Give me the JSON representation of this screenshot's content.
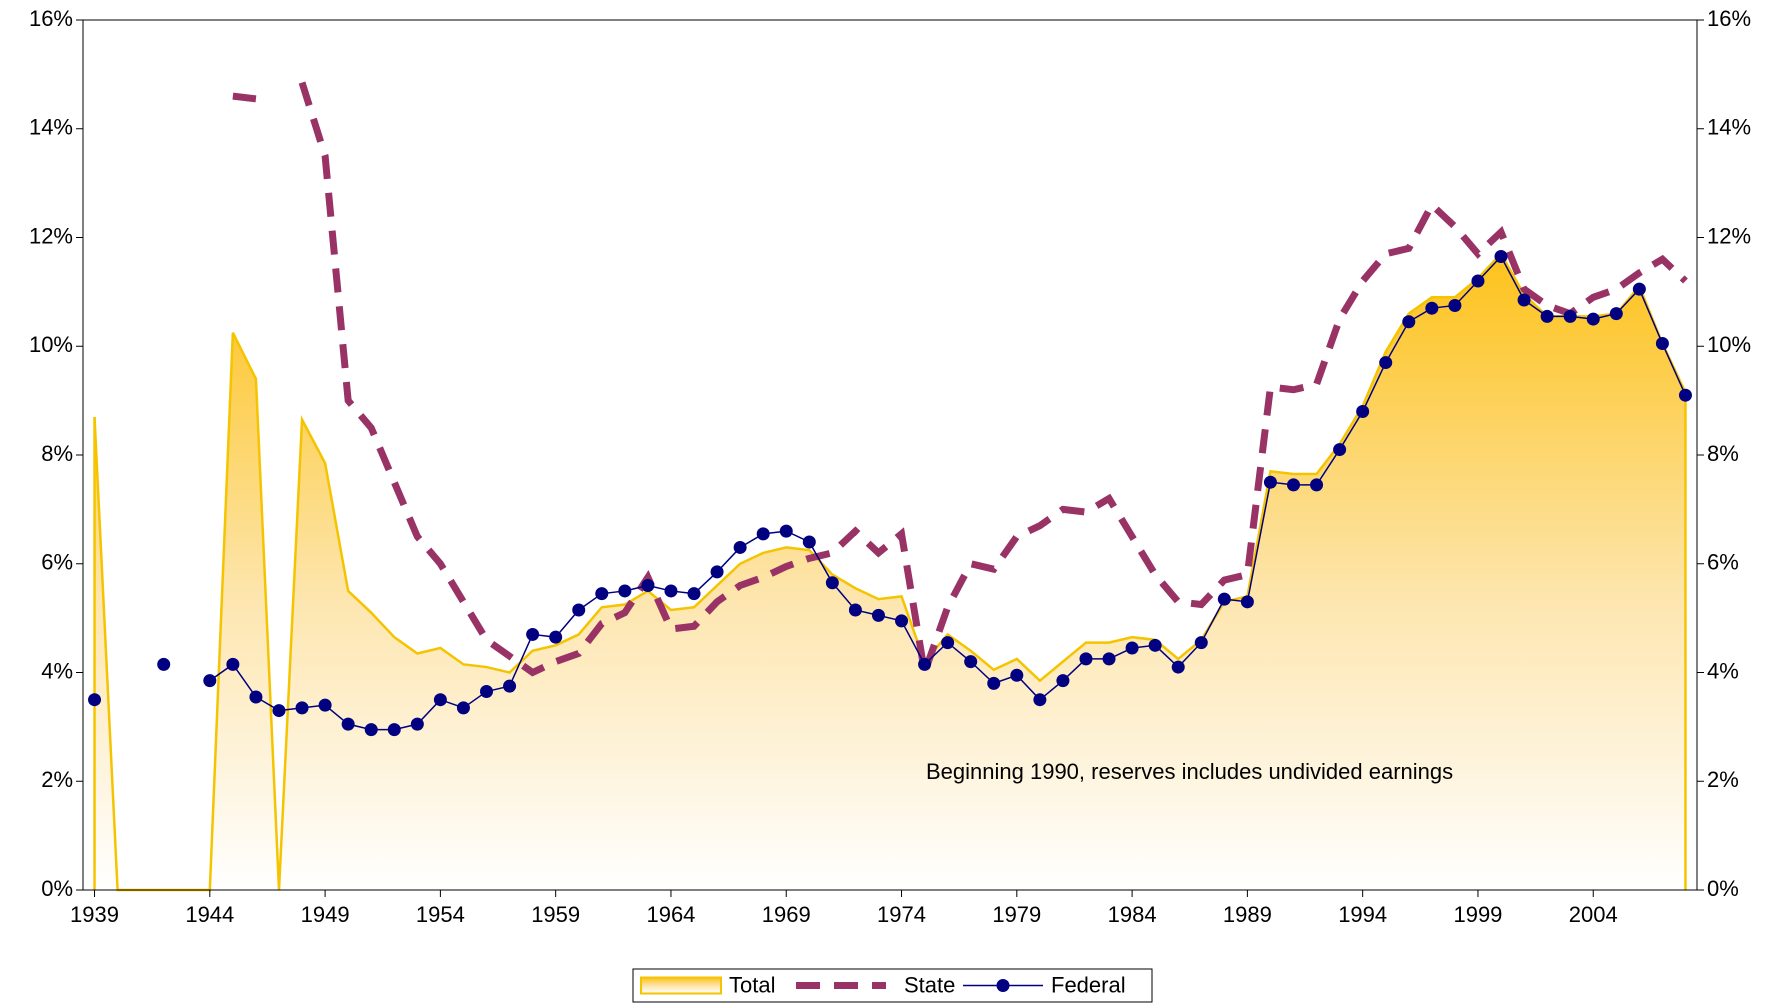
{
  "chart_data": {
    "type": "line",
    "annotation": "Beginning 1990, reserves includes undivided earnings",
    "x": [
      1939,
      1940,
      1941,
      1942,
      1943,
      1944,
      1945,
      1946,
      1947,
      1948,
      1949,
      1950,
      1951,
      1952,
      1953,
      1954,
      1955,
      1956,
      1957,
      1958,
      1959,
      1960,
      1961,
      1962,
      1963,
      1964,
      1965,
      1966,
      1967,
      1968,
      1969,
      1970,
      1971,
      1972,
      1973,
      1974,
      1975,
      1976,
      1977,
      1978,
      1979,
      1980,
      1981,
      1982,
      1983,
      1984,
      1985,
      1986,
      1987,
      1988,
      1989,
      1990,
      1991,
      1992,
      1993,
      1994,
      1995,
      1996,
      1997,
      1998,
      1999,
      2000,
      2001,
      2002,
      2003,
      2004,
      2005,
      2006,
      2007,
      2008
    ],
    "xlim": [
      1938.5,
      2008.5
    ],
    "xticks": [
      1939,
      1944,
      1949,
      1954,
      1959,
      1964,
      1969,
      1974,
      1979,
      1984,
      1989,
      1994,
      1999,
      2004
    ],
    "ylim": [
      0,
      16
    ],
    "yticks": [
      {
        "value": 0,
        "label": "0%"
      },
      {
        "value": 2,
        "label": "2%"
      },
      {
        "value": 4,
        "label": "4%"
      },
      {
        "value": 6,
        "label": "6%"
      },
      {
        "value": 8,
        "label": "8%"
      },
      {
        "value": 10,
        "label": "10%"
      },
      {
        "value": 12,
        "label": "12%"
      },
      {
        "value": 14,
        "label": "14%"
      },
      {
        "value": 16,
        "label": "16%"
      }
    ],
    "y2lim": [
      0,
      16
    ],
    "y2ticks": [
      {
        "value": 0,
        "label": "0%"
      },
      {
        "value": 2,
        "label": "2%"
      },
      {
        "value": 4,
        "label": "4%"
      },
      {
        "value": 6,
        "label": "6%"
      },
      {
        "value": 8,
        "label": "8%"
      },
      {
        "value": 10,
        "label": "10%"
      },
      {
        "value": 12,
        "label": "12%"
      },
      {
        "value": 14,
        "label": "14%"
      },
      {
        "value": 16,
        "label": "16%"
      }
    ],
    "legend": "bottom",
    "series": [
      {
        "name": "Total",
        "color": "#f5c400",
        "mark": "area",
        "values": [
          8.7,
          0,
          0,
          0,
          0,
          0,
          10.25,
          9.4,
          0,
          8.65,
          7.85,
          5.5,
          5.1,
          4.65,
          4.35,
          4.45,
          4.15,
          4.1,
          4.0,
          4.4,
          4.5,
          4.7,
          5.2,
          5.25,
          5.5,
          5.15,
          5.2,
          5.6,
          6.0,
          6.2,
          6.3,
          6.25,
          5.8,
          5.55,
          5.35,
          5.4,
          4.2,
          4.7,
          4.4,
          4.05,
          4.25,
          3.85,
          4.2,
          4.55,
          4.55,
          4.65,
          4.6,
          4.25,
          4.6,
          5.3,
          5.4,
          7.7,
          7.65,
          7.65,
          8.2,
          8.9,
          9.9,
          10.6,
          10.9,
          10.9,
          11.25,
          11.7,
          10.95,
          10.55,
          10.55,
          10.55,
          10.6,
          11.1,
          10.05,
          9.15
        ]
      },
      {
        "name": "State",
        "color": "#993366",
        "mark": "dash",
        "values": [
          null,
          null,
          null,
          null,
          null,
          null,
          14.6,
          14.55,
          null,
          14.85,
          13.5,
          9.0,
          8.5,
          7.5,
          6.5,
          6.0,
          5.3,
          4.6,
          4.3,
          4.0,
          4.2,
          4.35,
          4.9,
          5.1,
          5.75,
          4.8,
          4.85,
          5.3,
          5.6,
          5.75,
          5.95,
          6.1,
          6.2,
          6.6,
          6.2,
          6.55,
          4.0,
          5.2,
          6.0,
          5.9,
          6.5,
          6.7,
          7.0,
          6.95,
          7.2,
          6.5,
          5.8,
          5.3,
          5.25,
          5.7,
          5.8,
          9.25,
          9.2,
          9.3,
          10.5,
          11.2,
          11.7,
          11.8,
          12.6,
          12.2,
          11.7,
          12.1,
          11.05,
          10.75,
          10.6,
          10.9,
          11.05,
          11.35,
          11.6,
          11.2
        ]
      },
      {
        "name": "Federal",
        "color": "#000080",
        "mark": "dot-line",
        "values": [
          3.5,
          null,
          null,
          4.15,
          null,
          3.85,
          4.15,
          3.55,
          3.3,
          3.35,
          3.4,
          3.05,
          2.95,
          2.95,
          3.05,
          3.5,
          3.35,
          3.65,
          3.75,
          4.7,
          4.65,
          5.15,
          5.45,
          5.5,
          5.6,
          5.5,
          5.45,
          5.85,
          6.3,
          6.55,
          6.6,
          6.4,
          5.65,
          5.15,
          5.05,
          4.95,
          4.15,
          4.55,
          4.2,
          3.8,
          3.95,
          3.5,
          3.85,
          4.25,
          4.25,
          4.45,
          4.5,
          4.1,
          4.55,
          5.35,
          5.3,
          7.5,
          7.45,
          7.45,
          8.1,
          8.8,
          9.7,
          10.45,
          10.7,
          10.75,
          11.2,
          11.65,
          10.85,
          10.55,
          10.55,
          10.5,
          10.6,
          11.05,
          10.05,
          9.1
        ]
      }
    ]
  }
}
